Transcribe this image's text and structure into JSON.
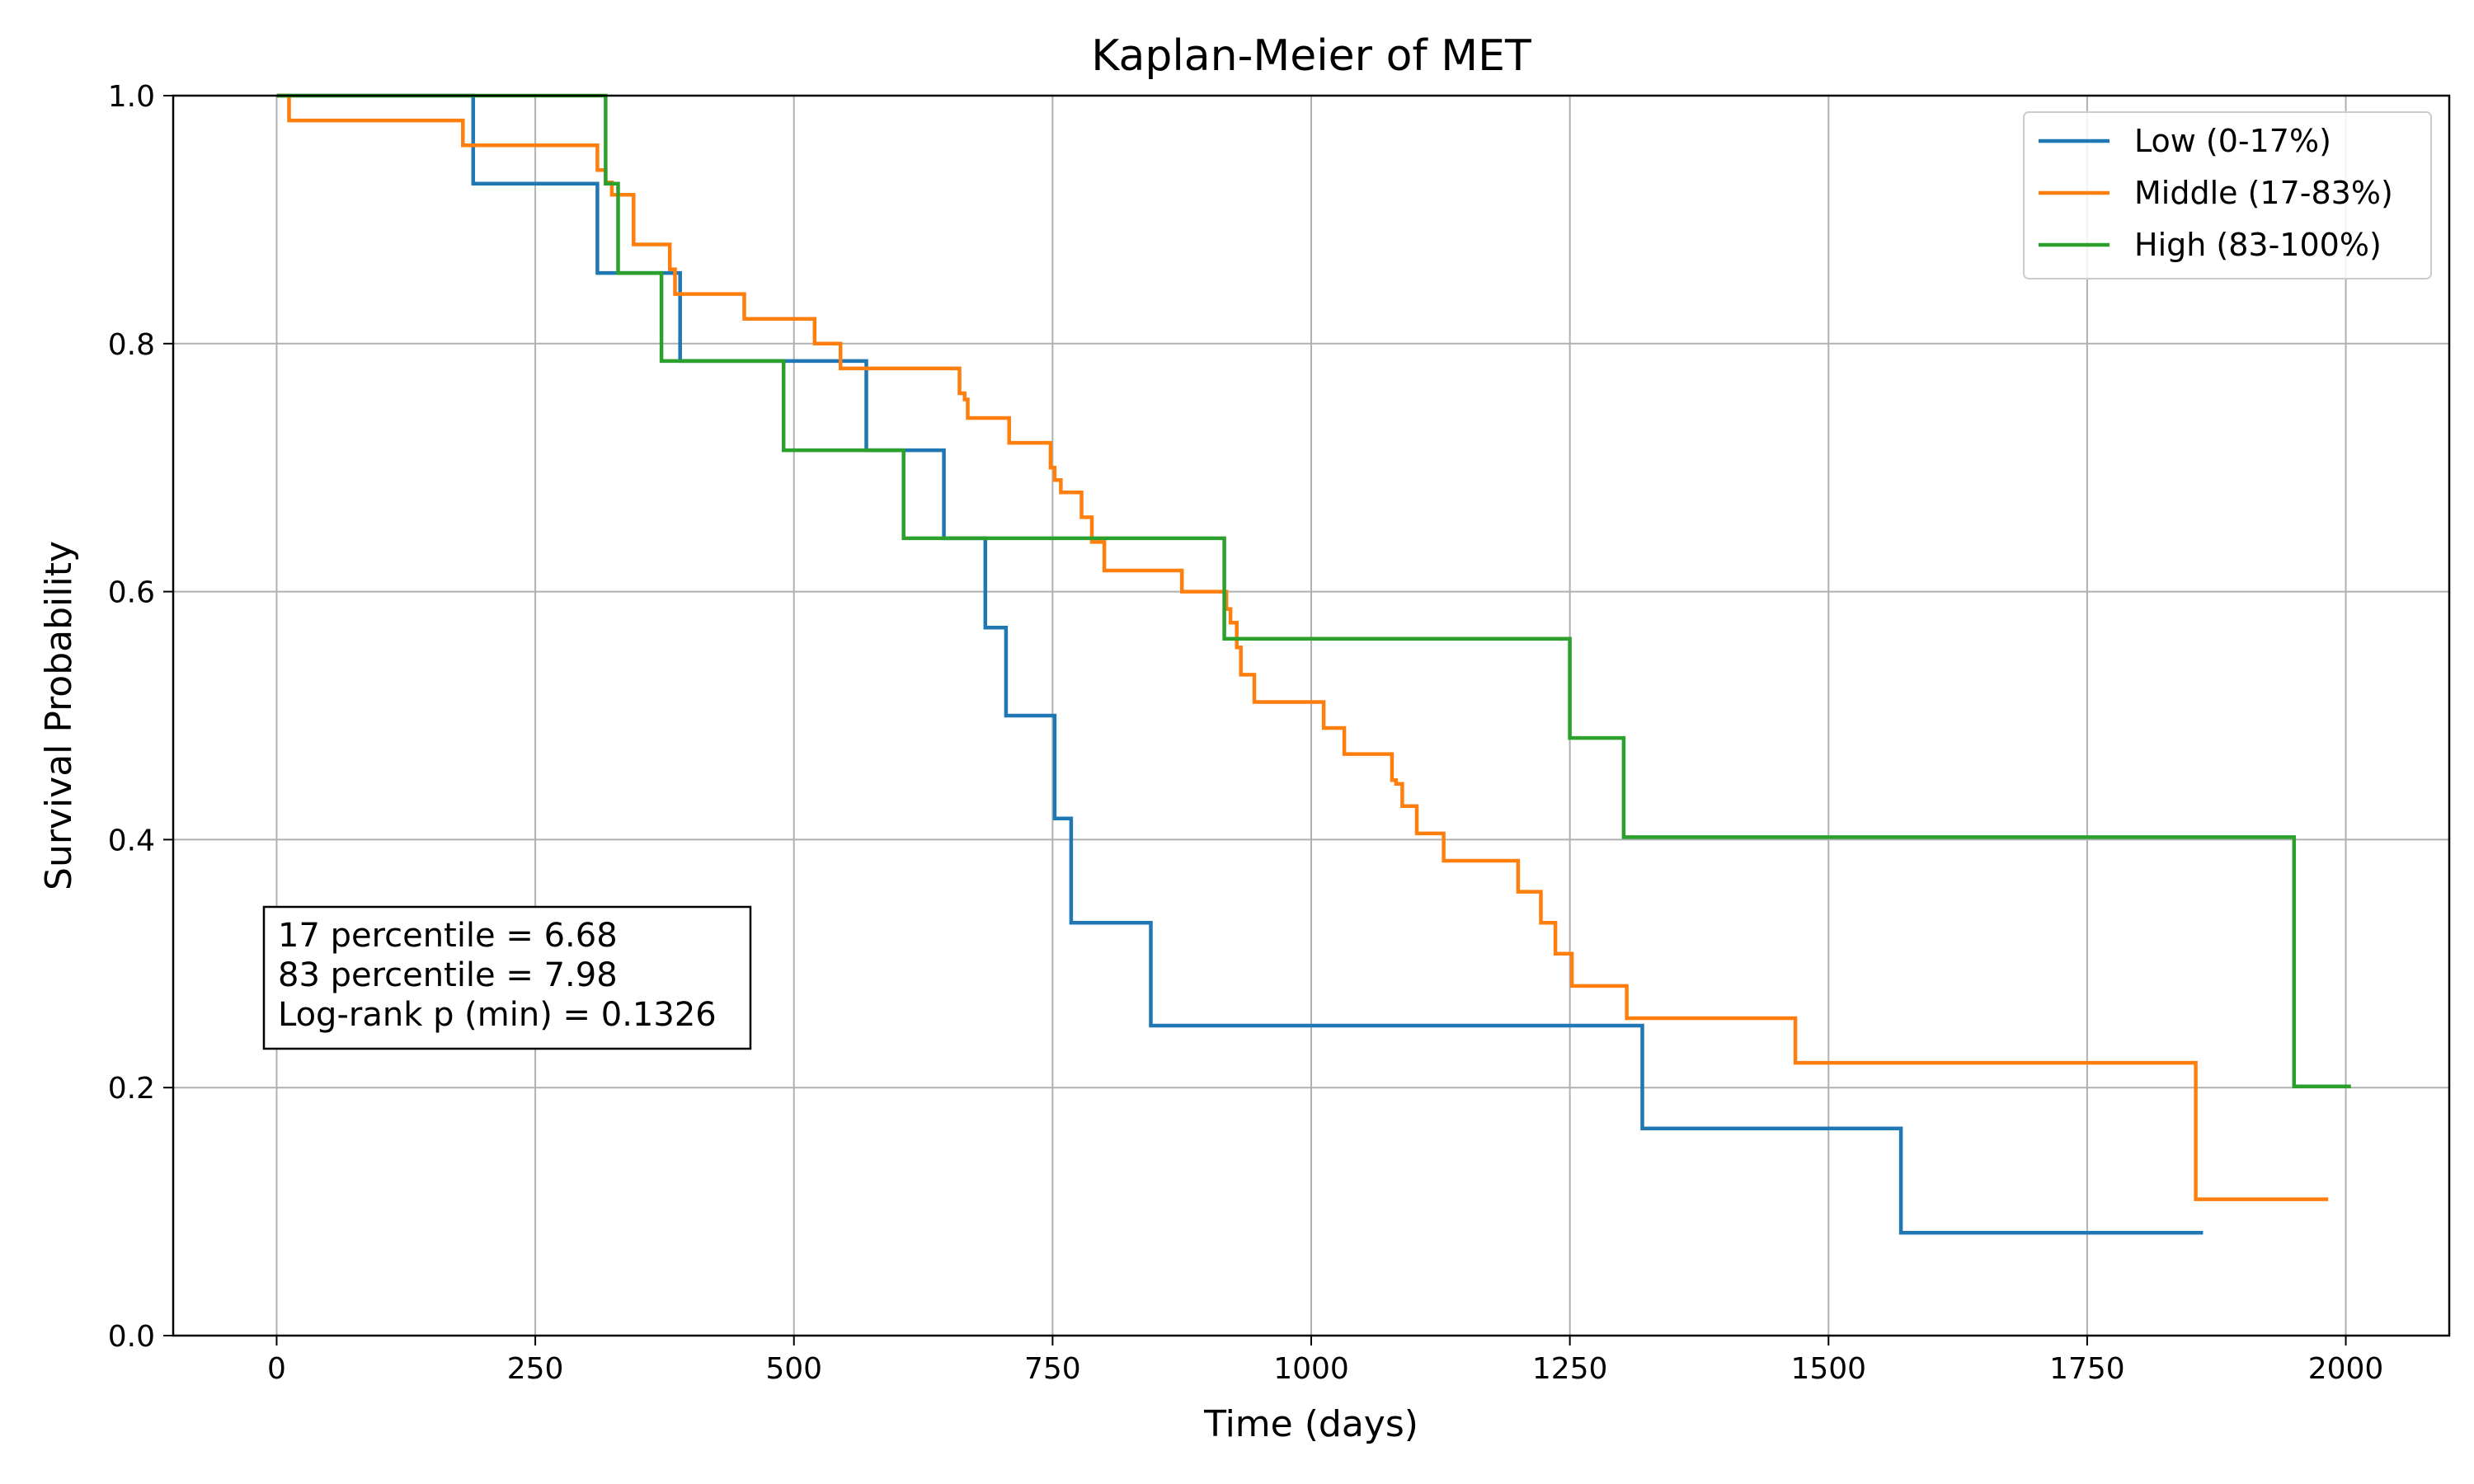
{
  "chart_data": {
    "type": "line",
    "step": true,
    "title": "Kaplan-Meier of MET",
    "xlabel": "Time (days)",
    "ylabel": "Survival Probability",
    "xlim": [
      -100,
      2100
    ],
    "ylim": [
      0.0,
      1.0
    ],
    "x_ticks": [
      0,
      250,
      500,
      750,
      1000,
      1250,
      1500,
      1750,
      2000
    ],
    "y_ticks": [
      0.0,
      0.2,
      0.4,
      0.6,
      0.8,
      1.0
    ],
    "x_tick_labels": [
      "0",
      "250",
      "500",
      "750",
      "1000",
      "1250",
      "1500",
      "1750",
      "2000"
    ],
    "y_tick_labels": [
      "0.0",
      "0.2",
      "0.4",
      "0.6",
      "0.8",
      "1.0"
    ],
    "grid": true,
    "legend_position": "top-right",
    "series": [
      {
        "name": "Low (0-17%)",
        "color": "#1f77b4",
        "x": [
          0,
          190,
          310,
          390,
          570,
          645,
          685,
          705,
          752,
          768,
          845,
          1320,
          1570,
          1862
        ],
        "y": [
          1.0,
          0.929,
          0.857,
          0.786,
          0.714,
          0.643,
          0.571,
          0.5,
          0.417,
          0.333,
          0.25,
          0.167,
          0.083,
          0.083
        ]
      },
      {
        "name": "Middle (17-83%)",
        "color": "#ff7f0e",
        "x": [
          0,
          12,
          180,
          310,
          318,
          324,
          345,
          380,
          385,
          452,
          520,
          545,
          660,
          665,
          668,
          708,
          748,
          752,
          758,
          778,
          788,
          800,
          875,
          918,
          922,
          928,
          932,
          945,
          1012,
          1032,
          1078,
          1082,
          1088,
          1102,
          1128,
          1200,
          1222,
          1236,
          1252,
          1305,
          1468,
          1855,
          1983
        ],
        "y": [
          1.0,
          0.98,
          0.96,
          0.94,
          0.93,
          0.92,
          0.88,
          0.86,
          0.84,
          0.82,
          0.8,
          0.78,
          0.76,
          0.755,
          0.74,
          0.72,
          0.7,
          0.69,
          0.68,
          0.66,
          0.64,
          0.617,
          0.6,
          0.586,
          0.575,
          0.555,
          0.533,
          0.511,
          0.49,
          0.469,
          0.448,
          0.445,
          0.427,
          0.405,
          0.383,
          0.358,
          0.333,
          0.308,
          0.282,
          0.256,
          0.22,
          0.11,
          0.11
        ]
      },
      {
        "name": "High (83-100%)",
        "color": "#2ca02c",
        "x": [
          0,
          318,
          330,
          372,
          490,
          606,
          916,
          1250,
          1302,
          1950,
          2005
        ],
        "y": [
          1.0,
          0.929,
          0.857,
          0.786,
          0.714,
          0.643,
          0.562,
          0.482,
          0.402,
          0.201,
          0.201
        ]
      }
    ],
    "annotation": [
      "17 percentile = 6.68",
      "83 percentile = 7.98",
      "Log-rank p (min) = 0.1326"
    ]
  }
}
